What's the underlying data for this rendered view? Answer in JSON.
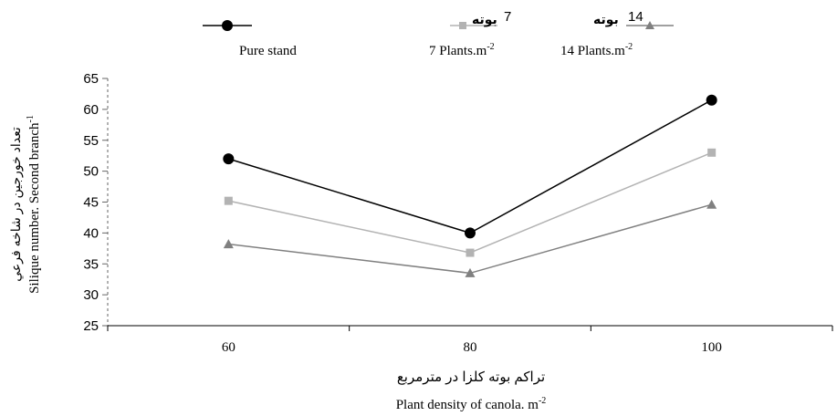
{
  "chart_data": {
    "type": "line",
    "x": [
      60,
      80,
      100
    ],
    "categories": [
      "60",
      "80",
      "100"
    ],
    "ylim": [
      25,
      65
    ],
    "yticks": [
      25,
      30,
      35,
      40,
      45,
      50,
      55,
      60,
      65
    ],
    "xlabel_fa": "تراکم بوته کلزا در مترمربع",
    "xlabel_en": "Plant density of canola. m",
    "xlabel_sup": "-2",
    "ylabel_fa": "تعداد خورجین در شاخه فرعي",
    "ylabel_en": "Silique number. Second branch",
    "ylabel_sup": "-1",
    "legend_position": "top",
    "series": [
      {
        "name": "Pure stand",
        "name_fa": "",
        "name_sup": "",
        "marker": "circle",
        "color": "#000000",
        "values": [
          52,
          40,
          61.5
        ]
      },
      {
        "name": "7 Plants.m",
        "name_fa": "بوته",
        "name_num": "7",
        "name_sup": "-2",
        "marker": "square",
        "color": "#b3b3b3",
        "values": [
          45.2,
          36.8,
          53
        ]
      },
      {
        "name": "14 Plants.m",
        "name_fa": "بوته",
        "name_num": "14",
        "name_sup": "-2",
        "marker": "triangle",
        "color": "#808080",
        "values": [
          38.2,
          33.5,
          44.6
        ]
      }
    ]
  }
}
